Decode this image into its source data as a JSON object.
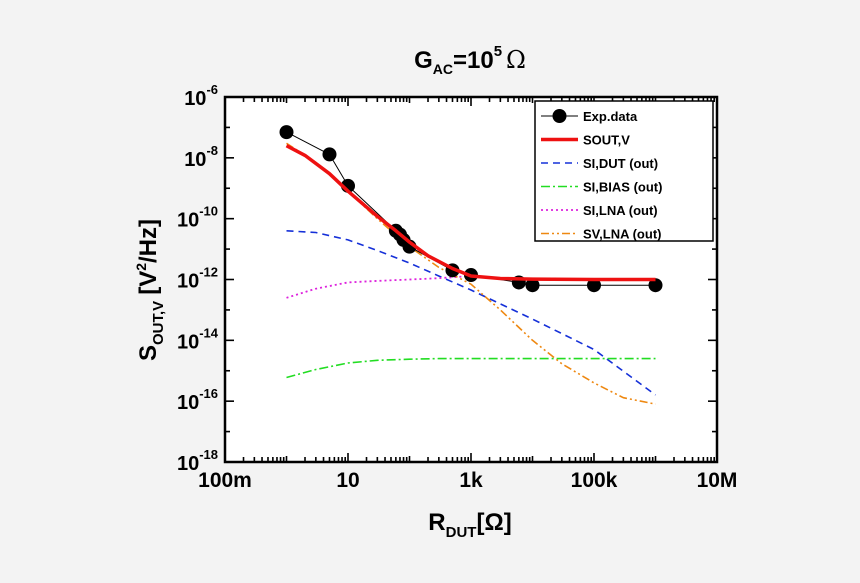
{
  "chart_data": {
    "type": "line",
    "title": {
      "base": "G",
      "sub": "AC",
      "mid": "=10",
      "sup": "5",
      "unit": "Ω"
    },
    "xlabel": {
      "base": "R",
      "sub": "DUT",
      "rest": "[Ω]"
    },
    "ylabel": {
      "base": "S",
      "sub": "OUT,V",
      "open": "[V",
      "sup": "2",
      "close": "/Hz]"
    },
    "x_scale": "log",
    "y_scale": "log",
    "xlim": [
      1,
      10000000
    ],
    "ylim": [
      1e-18,
      1e-06
    ],
    "x_ticks": [
      {
        "value": 0.1,
        "label": "100m"
      },
      {
        "value": 10,
        "label": "10"
      },
      {
        "value": 1000,
        "label": "1k"
      },
      {
        "value": 100000,
        "label": "100k"
      },
      {
        "value": 10000000,
        "label": "10M"
      }
    ],
    "y_ticks": [
      {
        "value": 1e-06,
        "base": "10",
        "exp": "-6"
      },
      {
        "value": 1e-08,
        "base": "10",
        "exp": "-8"
      },
      {
        "value": 1e-10,
        "base": "10",
        "exp": "-10"
      },
      {
        "value": 1e-12,
        "base": "10",
        "exp": "-12"
      },
      {
        "value": 1e-14,
        "base": "10",
        "exp": "-14"
      },
      {
        "value": 1e-16,
        "base": "10",
        "exp": "-16"
      },
      {
        "value": 1e-18,
        "base": "10",
        "exp": "-18"
      }
    ],
    "grid": false,
    "legend_position": "top-right",
    "series": [
      {
        "name": "Exp.data",
        "style": "markers-line",
        "color": "#000000",
        "x": [
          1,
          5,
          10,
          60,
          70,
          80,
          100,
          500,
          1000,
          6000,
          10000,
          100000,
          1000000
        ],
        "y": [
          7e-08,
          1.3e-08,
          1.2e-09,
          4e-11,
          3e-11,
          2e-11,
          1.2e-11,
          2e-12,
          1.4e-12,
          8e-13,
          6.5e-13,
          6.5e-13,
          6.5e-13
        ]
      },
      {
        "name": "SOUT,V",
        "style": "solid-thick",
        "color": "#ee1111",
        "x": [
          1,
          2,
          5,
          10,
          30,
          60,
          100,
          200,
          500,
          1000,
          3000,
          10000,
          100000,
          1000000
        ],
        "y": [
          2.5e-08,
          1.2e-08,
          3e-09,
          8e-10,
          1.2e-10,
          4e-11,
          1.7e-11,
          6e-12,
          2.3e-12,
          1.3e-12,
          1.08e-12,
          1.03e-12,
          1e-12,
          1e-12
        ]
      },
      {
        "name": "SI,DUT (out)",
        "style": "dashed",
        "color": "#1530d8",
        "x": [
          1,
          3,
          10,
          30,
          100,
          300,
          1000,
          10000,
          100000,
          1000000
        ],
        "y": [
          4e-11,
          3.5e-11,
          2e-11,
          9e-12,
          3.5e-12,
          1.3e-12,
          4.5e-13,
          5e-14,
          5e-15,
          1.6e-16
        ]
      },
      {
        "name": "SI,BIAS (out)",
        "style": "dashdot",
        "color": "#22dd22",
        "x": [
          1,
          3,
          10,
          30,
          100,
          300,
          1000,
          10000,
          100000,
          1000000
        ],
        "y": [
          6e-16,
          1.1e-15,
          1.8e-15,
          2.2e-15,
          2.4e-15,
          2.5e-15,
          2.5e-15,
          2.5e-15,
          2.5e-15,
          2.5e-15
        ]
      },
      {
        "name": "SI,LNA (out)",
        "style": "dotted",
        "color": "#dd22dd",
        "x": [
          1,
          3,
          10,
          30,
          100,
          300,
          1000
        ],
        "y": [
          2.5e-13,
          5e-13,
          8e-13,
          9e-13,
          1e-12,
          1.1e-12,
          1.3e-12
        ]
      },
      {
        "name": "SV,LNA (out)",
        "style": "dashdotdot",
        "color": "#ee8811",
        "x": [
          1,
          3,
          10,
          30,
          100,
          300,
          1000,
          3000,
          10000,
          30000,
          100000,
          300000,
          1000000
        ],
        "y": [
          3e-08,
          7e-09,
          8e-10,
          1e-10,
          1.2e-11,
          2.5e-12,
          7e-13,
          1e-13,
          1e-14,
          1.7e-15,
          4e-16,
          1.3e-16,
          8e-17
        ]
      }
    ]
  }
}
